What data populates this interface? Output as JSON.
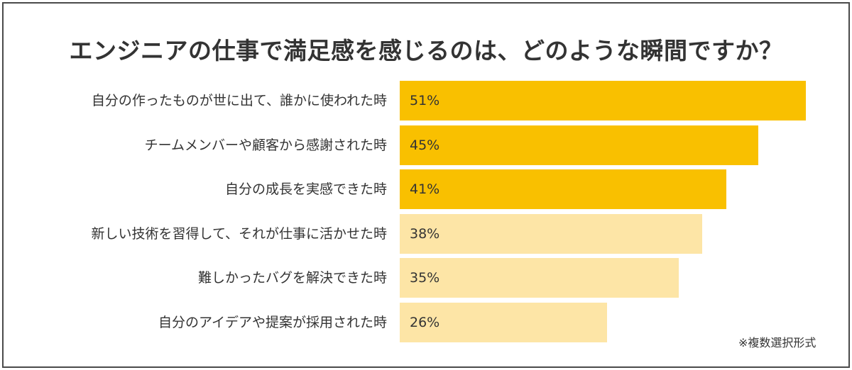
{
  "chart_data": {
    "type": "bar",
    "orientation": "horizontal",
    "title": "エンジニアの仕事で満足感を感じるのは、どのような瞬間ですか？",
    "categories": [
      "自分の作ったものが世に出て、誰かに使われた時",
      "チームメンバーや顧客から感謝された時",
      "自分の成長を実感できた時",
      "新しい技術を習得して、それが仕事に活かせた時",
      "難しかったバグを解決できた時",
      "自分のアイデアや提案が採用された時"
    ],
    "values": [
      51,
      45,
      41,
      38,
      35,
      26
    ],
    "value_labels": [
      "51%",
      "45%",
      "41%",
      "38%",
      "35%",
      "26%"
    ],
    "unit": "%",
    "xlabel": "",
    "ylabel": "",
    "grid": false,
    "legend": null,
    "annotations": [
      "※複数選択形式"
    ],
    "highlight_top_n": 3,
    "colors": {
      "highlight": "#F9C000",
      "normal": "#FDE5A6"
    }
  },
  "title": "エンジニアの仕事で満足感を感じるのは、どのような瞬間ですか？",
  "rows": [
    {
      "label": "自分の作ったものが世に出て、誰かに使われた時",
      "value": "51%"
    },
    {
      "label": "チームメンバーや顧客から感謝された時",
      "value": "45%"
    },
    {
      "label": "自分の成長を実感できた時",
      "value": "41%"
    },
    {
      "label": "新しい技術を習得して、それが仕事に活かせた時",
      "value": "38%"
    },
    {
      "label": "難しかったバグを解決できた時",
      "value": "35%"
    },
    {
      "label": "自分のアイデアや提案が採用された時",
      "value": "26%"
    }
  ],
  "footnote": "※複数選択形式"
}
